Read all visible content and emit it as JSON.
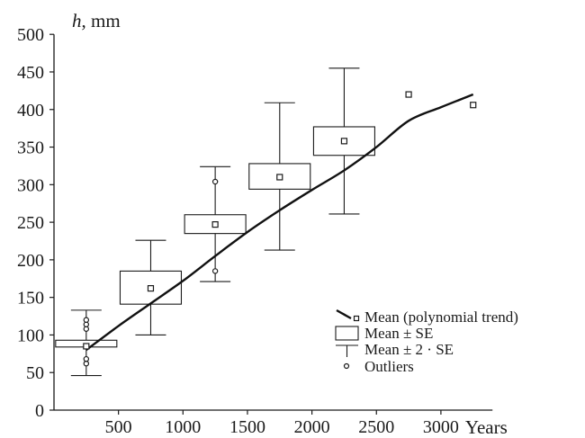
{
  "chart_data": {
    "type": "box",
    "ylabel_var": "h",
    "ylabel_unit": ", mm",
    "xlabel": "Years",
    "xlim": [
      0,
      3400
    ],
    "ylim": [
      0,
      500
    ],
    "x_ticks": [
      500,
      1000,
      1500,
      2000,
      2500,
      3000
    ],
    "y_ticks": [
      0,
      50,
      100,
      150,
      200,
      250,
      300,
      350,
      400,
      450,
      500
    ],
    "groups": [
      {
        "x": 250,
        "mean": 85,
        "se_low": 84,
        "se_high": 93,
        "lower_2se": 46,
        "upper_2se": 133,
        "outliers": [
          62,
          68,
          108,
          114,
          120
        ]
      },
      {
        "x": 750,
        "mean": 162,
        "se_low": 141,
        "se_high": 185,
        "lower_2se": 100,
        "upper_2se": 226,
        "outliers": []
      },
      {
        "x": 1250,
        "mean": 247,
        "se_low": 235,
        "se_high": 260,
        "lower_2se": 171,
        "upper_2se": 324,
        "outliers": [
          185,
          304
        ]
      },
      {
        "x": 1750,
        "mean": 310,
        "se_low": 294,
        "se_high": 328,
        "lower_2se": 213,
        "upper_2se": 409,
        "outliers": []
      },
      {
        "x": 2250,
        "mean": 358,
        "se_low": 339,
        "se_high": 377,
        "lower_2se": 261,
        "upper_2se": 455,
        "outliers": []
      },
      {
        "x": 2750,
        "mean": 420,
        "se_low": null,
        "se_high": null,
        "lower_2se": null,
        "upper_2se": null,
        "outliers": []
      },
      {
        "x": 3250,
        "mean": 406,
        "se_low": null,
        "se_high": null,
        "lower_2se": null,
        "upper_2se": null,
        "outliers": []
      }
    ],
    "trend": {
      "x": [
        250,
        500,
        750,
        1000,
        1250,
        1500,
        1750,
        2000,
        2250,
        2500,
        2750,
        3000,
        3250
      ],
      "y": [
        80,
        112,
        142,
        172,
        205,
        237,
        266,
        293,
        319,
        350,
        385,
        403,
        420
      ]
    },
    "legend": {
      "position": "lower-right",
      "items": [
        "Mean (polynomial trend)",
        "Mean ± SE",
        "Mean ± 2 · SE",
        "Outliers"
      ]
    }
  }
}
